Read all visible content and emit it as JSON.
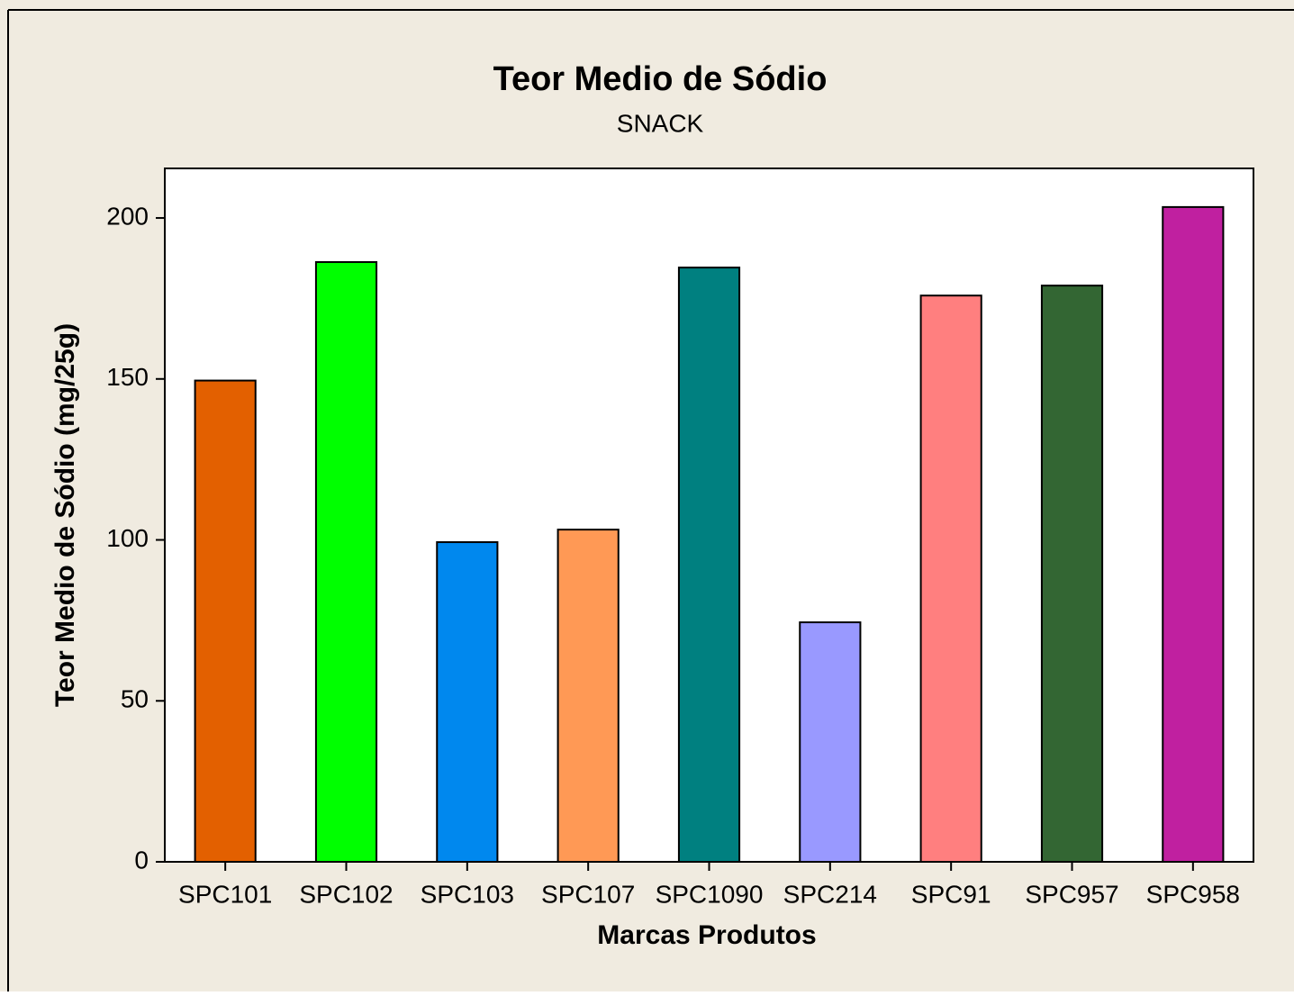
{
  "chart_data": {
    "type": "bar",
    "title": "Teor Medio de Sódio",
    "subtitle": "SNACK",
    "x_label": "Marcas Produtos",
    "y_label": "Teor Medio de Sódio (mg/25g)",
    "categories": [
      "SPC101",
      "SPC102",
      "SPC103",
      "SPC107",
      "SPC1090",
      "SPC214",
      "SPC91",
      "SPC957",
      "SPC958"
    ],
    "values": [
      149.5,
      186.3,
      99.3,
      103.2,
      184.6,
      74.4,
      175.9,
      179,
      203.4
    ],
    "colors": [
      "#e36000",
      "#00ff00",
      "#0088ee",
      "#ff9955",
      "#008080",
      "#9999ff",
      "#ff7f7f",
      "#336633",
      "#c020a0"
    ],
    "ylim": [
      0,
      215.4
    ],
    "yticks": [
      0,
      50,
      100,
      150,
      200
    ],
    "grid": false
  }
}
